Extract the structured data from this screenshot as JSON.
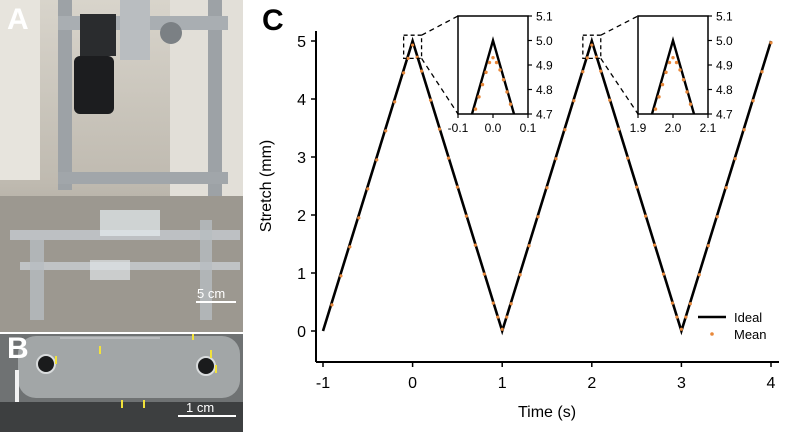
{
  "panels": {
    "a": {
      "letter": "A",
      "scale_text": "5 cm"
    },
    "b": {
      "letter": "B",
      "scale_text": "1 cm"
    },
    "c": {
      "letter": "C"
    }
  },
  "colors": {
    "ideal": "#000000",
    "mean": "#e8883a",
    "inset_box": "#000000"
  },
  "chart_data": [
    {
      "type": "line",
      "title": "",
      "xlabel": "Time (s)",
      "ylabel": "Stretch (mm)",
      "xlim": [
        -1,
        4
      ],
      "ylim": [
        0,
        5
      ],
      "xticks": [
        -1,
        0,
        1,
        2,
        3,
        4
      ],
      "yticks": [
        0,
        1,
        2,
        3,
        4,
        5
      ],
      "xtick_labels": [
        "-1",
        "0",
        "1",
        "2",
        "3",
        "4"
      ],
      "ytick_labels": [
        "0",
        "1",
        "2",
        "3",
        "4",
        "5"
      ],
      "legend": {
        "placement": "bottom-right",
        "entries": [
          "Ideal",
          "Mean"
        ]
      },
      "series": [
        {
          "name": "Ideal",
          "style": "line",
          "x": [
            -1,
            0,
            1,
            2,
            3,
            4
          ],
          "y": [
            0,
            5,
            0,
            5,
            0,
            5
          ]
        },
        {
          "name": "Mean",
          "style": "points",
          "x": [
            -0.9,
            -0.8,
            -0.7,
            -0.6,
            -0.5,
            -0.4,
            -0.3,
            -0.2,
            -0.1,
            -0.05,
            0.0,
            0.05,
            0.1,
            0.2,
            0.3,
            0.4,
            0.5,
            0.6,
            0.7,
            0.8,
            0.9,
            0.95,
            1.0,
            1.05,
            1.1,
            1.2,
            1.3,
            1.4,
            1.5,
            1.6,
            1.7,
            1.8,
            1.9,
            1.95,
            2.0,
            2.05,
            2.1,
            2.2,
            2.3,
            2.4,
            2.5,
            2.6,
            2.7,
            2.8,
            2.9,
            2.95,
            3.0,
            3.05,
            3.1,
            3.2,
            3.3,
            3.4,
            3.5,
            3.6,
            3.7,
            3.8,
            3.9,
            4.0
          ],
          "y": [
            0.45,
            0.95,
            1.45,
            1.95,
            2.45,
            2.95,
            3.45,
            3.95,
            4.45,
            4.7,
            4.93,
            4.72,
            4.48,
            3.98,
            3.48,
            2.98,
            2.48,
            1.98,
            1.48,
            0.98,
            0.48,
            0.24,
            0.03,
            0.24,
            0.47,
            0.97,
            1.47,
            1.97,
            2.47,
            2.97,
            3.47,
            3.97,
            4.47,
            4.71,
            4.93,
            4.72,
            4.48,
            3.98,
            3.48,
            2.98,
            2.48,
            1.98,
            1.48,
            0.98,
            0.48,
            0.24,
            0.03,
            0.24,
            0.47,
            0.97,
            1.47,
            1.97,
            2.47,
            2.97,
            3.47,
            3.97,
            4.47,
            4.97
          ]
        }
      ]
    },
    {
      "type": "line",
      "title": "",
      "xlim": [
        -0.1,
        0.1
      ],
      "ylim": [
        4.7,
        5.1
      ],
      "xticks": [
        -0.1,
        0.0,
        0.1
      ],
      "yticks": [
        4.7,
        4.8,
        4.9,
        5.0,
        5.1
      ],
      "xtick_labels": [
        "-0.1",
        "0.0",
        "0.1"
      ],
      "ytick_labels": [
        "4.7",
        "4.8",
        "4.9",
        "5.0",
        "5.1"
      ],
      "series": [
        {
          "name": "Ideal",
          "style": "line",
          "x": [
            -0.06,
            0.0,
            0.06
          ],
          "y": [
            4.7,
            5.0,
            4.7
          ]
        },
        {
          "name": "Mean",
          "style": "points",
          "x": [
            -0.05,
            -0.04,
            -0.03,
            -0.02,
            -0.01,
            0.0,
            0.01,
            0.02,
            0.03,
            0.04,
            0.05
          ],
          "y": [
            4.72,
            4.77,
            4.82,
            4.87,
            4.91,
            4.93,
            4.91,
            4.88,
            4.84,
            4.79,
            4.74
          ]
        }
      ]
    },
    {
      "type": "line",
      "title": "",
      "xlim": [
        1.9,
        2.1
      ],
      "ylim": [
        4.7,
        5.1
      ],
      "xticks": [
        1.9,
        2.0,
        2.1
      ],
      "yticks": [
        4.7,
        4.8,
        4.9,
        5.0,
        5.1
      ],
      "xtick_labels": [
        "1.9",
        "2.0",
        "2.1"
      ],
      "ytick_labels": [
        "4.7",
        "4.8",
        "4.9",
        "5.0",
        "5.1"
      ],
      "series": [
        {
          "name": "Ideal",
          "style": "line",
          "x": [
            1.94,
            2.0,
            2.06
          ],
          "y": [
            4.7,
            5.0,
            4.7
          ]
        },
        {
          "name": "Mean",
          "style": "points",
          "x": [
            1.95,
            1.96,
            1.97,
            1.98,
            1.99,
            2.0,
            2.01,
            2.02,
            2.03,
            2.04,
            2.05
          ],
          "y": [
            4.72,
            4.77,
            4.82,
            4.87,
            4.91,
            4.93,
            4.91,
            4.88,
            4.84,
            4.79,
            4.74
          ]
        }
      ]
    }
  ]
}
